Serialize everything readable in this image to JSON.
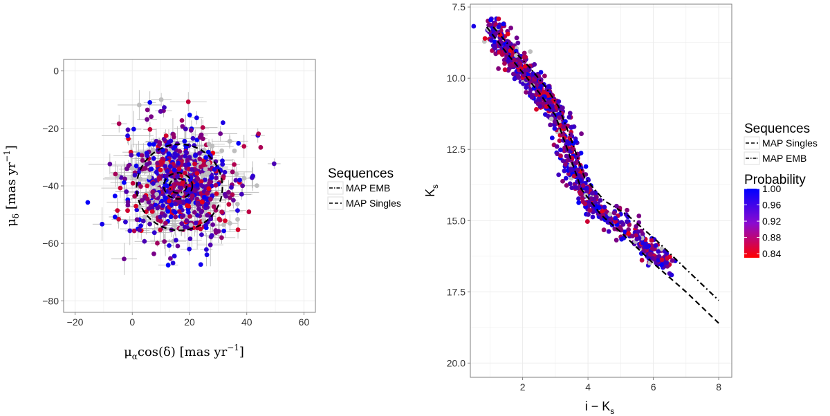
{
  "chart_data": [
    {
      "type": "scatter",
      "id": "proper-motion",
      "xlabel": "μαcos(δ) [mas yr⁻¹]",
      "xlabel_parts": {
        "mu": "μ",
        "alpha": "α",
        "rest": "cos(δ) [mas yr",
        "exp": "−1",
        "close": "]"
      },
      "ylabel": "μδ [mas yr⁻¹]",
      "ylabel_parts": {
        "mu": "μ",
        "delta": "δ",
        "rest": " [mas yr",
        "exp": "−1",
        "close": "]"
      },
      "xlim": [
        -24,
        64
      ],
      "ylim": [
        -84,
        4
      ],
      "xticks": [
        -20,
        0,
        20,
        40,
        60
      ],
      "yticks": [
        0,
        -20,
        -40,
        -60,
        -80
      ],
      "xtick_labels": [
        "−20",
        "0",
        "20",
        "40",
        "60"
      ],
      "ytick_labels": [
        "0",
        "−20",
        "−40",
        "−60",
        "−80"
      ],
      "cloud": {
        "center": [
          17,
          -40
        ],
        "spread": [
          9,
          9
        ],
        "count": 700
      },
      "ellipses": [
        {
          "name": "MAP Singles",
          "center": [
            16.5,
            -40.5
          ],
          "radius": [
            15,
            15
          ],
          "dash": "dashed"
        },
        {
          "name": "MAP Singles",
          "center": [
            16,
            -40
          ],
          "radius": [
            5,
            4.5
          ],
          "dash": "dashed"
        },
        {
          "name": "MAP EMB",
          "center": [
            16,
            -40
          ],
          "radius": [
            3,
            2.5
          ],
          "dash": "dotdash"
        }
      ],
      "legend": {
        "title": "Sequences",
        "entries": [
          {
            "label": "MAP EMB",
            "dash": "dotdash"
          },
          {
            "label": "MAP Singles",
            "dash": "dashed"
          }
        ]
      }
    },
    {
      "type": "scatter",
      "id": "color-magnitude",
      "xlabel": "i − Ks",
      "xlabel_parts": {
        "main": "i − K",
        "sub": "s"
      },
      "ylabel": "Ks",
      "ylabel_parts": {
        "main": "K",
        "sub": "s"
      },
      "xlim": [
        0.4,
        8.4
      ],
      "ylim": [
        7.4,
        20.5
      ],
      "y_inverted": true,
      "xticks": [
        2,
        4,
        6,
        8
      ],
      "yticks": [
        7.5,
        10,
        12.5,
        15,
        17.5,
        20
      ],
      "xtick_labels": [
        "2",
        "4",
        "6",
        "8"
      ],
      "ytick_labels": [
        "7.5",
        "10.0",
        "12.5",
        "15.0",
        "17.5",
        "20.0"
      ],
      "sequence_ridge": [
        [
          1.0,
          8.2
        ],
        [
          1.5,
          9.0
        ],
        [
          2.0,
          9.7
        ],
        [
          2.5,
          10.4
        ],
        [
          3.0,
          11.1
        ],
        [
          3.3,
          12.0
        ],
        [
          3.5,
          13.0
        ],
        [
          3.8,
          13.8
        ],
        [
          4.2,
          14.5
        ],
        [
          5.0,
          15.1
        ],
        [
          5.8,
          15.9
        ],
        [
          6.5,
          16.6
        ]
      ],
      "lines": [
        {
          "name": "MAP Singles",
          "dash": "dashed",
          "points": [
            [
              0.9,
              8.2
            ],
            [
              1.5,
              9.1
            ],
            [
              2.0,
              9.8
            ],
            [
              2.5,
              10.5
            ],
            [
              3.0,
              11.3
            ],
            [
              3.4,
              12.6
            ],
            [
              3.8,
              13.9
            ],
            [
              4.4,
              14.8
            ],
            [
              5.0,
              15.4
            ],
            [
              6.0,
              16.5
            ],
            [
              7.0,
              17.5
            ],
            [
              8.0,
              18.6
            ]
          ]
        },
        {
          "name": "MAP EMB",
          "dash": "dotdash",
          "points": [
            [
              1.1,
              8.2
            ],
            [
              1.7,
              9.0
            ],
            [
              2.2,
              9.6
            ],
            [
              2.7,
              10.3
            ],
            [
              3.1,
              11.0
            ],
            [
              3.5,
              12.2
            ],
            [
              3.9,
              13.5
            ],
            [
              4.5,
              14.3
            ],
            [
              5.2,
              14.8
            ],
            [
              6.1,
              15.7
            ],
            [
              7.0,
              16.7
            ],
            [
              8.0,
              17.8
            ]
          ]
        }
      ],
      "legend": {
        "title": "Sequences",
        "entries": [
          {
            "label": "MAP Singles",
            "dash": "dashed"
          },
          {
            "label": "MAP EMB",
            "dash": "dotdash"
          }
        ]
      },
      "colorbar": {
        "title": "Probability",
        "range": [
          0.83,
          1.0
        ],
        "ticks": [
          1.0,
          0.96,
          0.92,
          0.88,
          0.84
        ],
        "tick_labels": [
          "1.00",
          "0.96",
          "0.92",
          "0.88",
          "0.84"
        ],
        "low_color": "#ff0000",
        "high_color": "#0000ff"
      }
    }
  ],
  "colors": {
    "panel_bg": "#ffffff",
    "grid": "#ebebeb",
    "border": "#7f7f7f",
    "errorbar": "#b3b3b3",
    "unmatched": "#bebebe",
    "line": "#000000"
  }
}
